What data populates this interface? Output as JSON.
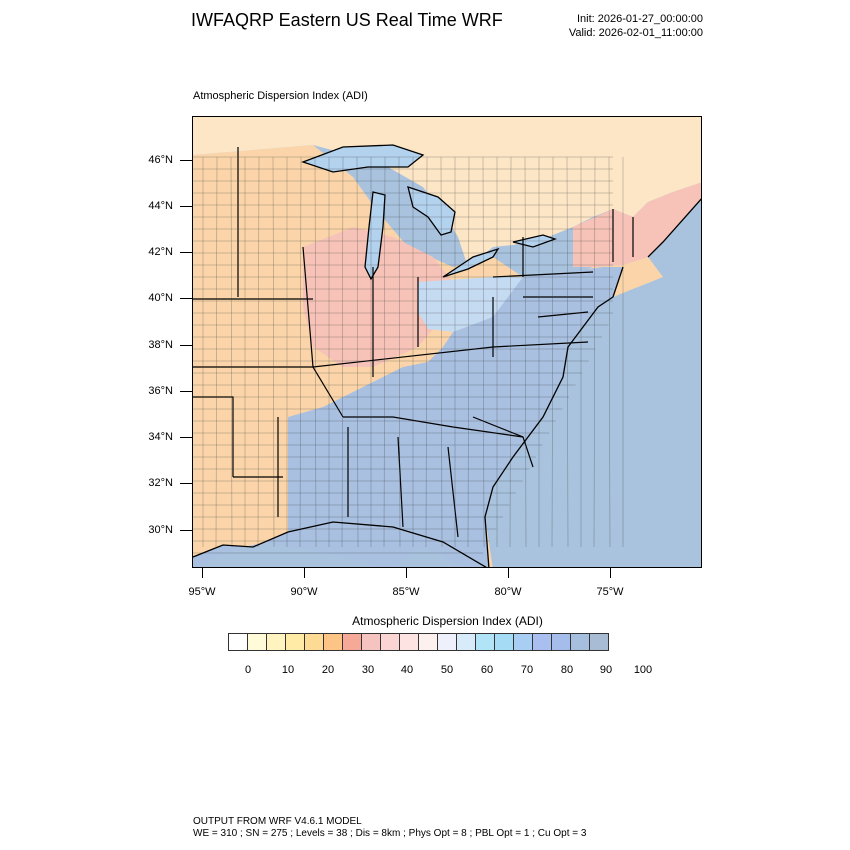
{
  "header": {
    "title": "IWFAQRP Eastern US Real Time WRF",
    "init": "Init: 2026-01-27_00:00:00",
    "valid": "Valid: 2026-02-01_11:00:00"
  },
  "plot": {
    "label": "Atmospheric Dispersion Index   (ADI)",
    "lat_labels": [
      "46°N",
      "44°N",
      "42°N",
      "40°N",
      "38°N",
      "36°N",
      "34°N",
      "32°N",
      "30°N"
    ],
    "lon_labels": [
      "95°W",
      "90°W",
      "85°W",
      "80°W",
      "75°W"
    ]
  },
  "legend": {
    "title": "Atmospheric Dispersion Index  (ADI)",
    "labels": [
      "0",
      "10",
      "20",
      "30",
      "40",
      "50",
      "60",
      "70",
      "80",
      "90",
      "100"
    ],
    "colors": [
      "#ffffff",
      "#fffbd8",
      "#fff4c0",
      "#ffeaa6",
      "#fedb95",
      "#fcc586",
      "#f6a996",
      "#f5c4c0",
      "#fbd5d3",
      "#fde3e1",
      "#fdf1f0",
      "#eef0fb",
      "#d8ebfa",
      "#b2e4f8",
      "#a6dbf5",
      "#a8cff3",
      "#a8bff0",
      "#a4bdea",
      "#a6bfde",
      "#a9bcd6"
    ]
  },
  "map_colors": {
    "ocean": "#a9c3de",
    "canada": "#fde6c6",
    "lake": "#b3d2ee",
    "orange_zone": "#fbd5a9",
    "pink_zone": "#f7c3b8",
    "blue_zone": "#a9c0e0",
    "light_blue_zone": "#c5dbf2"
  },
  "footer": {
    "line1": "OUTPUT FROM WRF V4.6.1 MODEL",
    "line2": "WE = 310 ; SN = 275 ; Levels = 38 ; Dis = 8km ; Phys Opt = 8 ; PBL Opt = 1 ; Cu Opt = 3"
  }
}
